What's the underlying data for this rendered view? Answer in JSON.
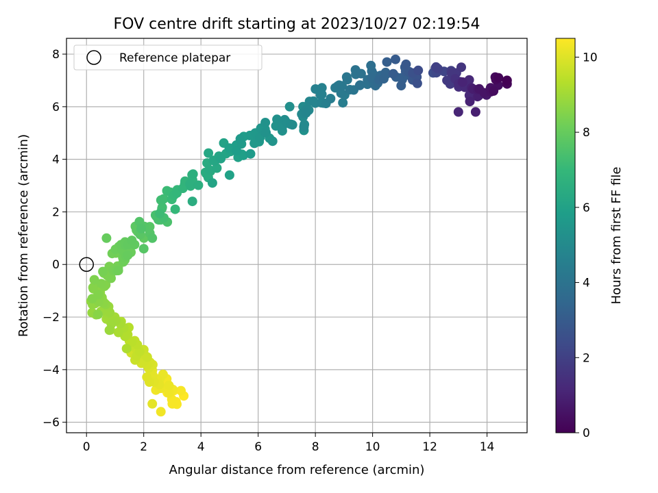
{
  "chart_data": {
    "type": "scatter",
    "title": "FOV centre drift starting at 2023/10/27 02:19:54",
    "xlabel": "Angular distance from reference (arcmin)",
    "ylabel": "Rotation from reference (arcmin)",
    "xlim": [
      -0.7,
      15.4
    ],
    "ylim": [
      -6.4,
      8.6
    ],
    "xticks": [
      0,
      2,
      4,
      6,
      8,
      10,
      12,
      14
    ],
    "yticks": [
      -6,
      -4,
      -2,
      0,
      2,
      4,
      6,
      8
    ],
    "grid": true,
    "legend": {
      "position": "top-left",
      "entries": [
        "Reference platepar"
      ]
    },
    "reference_point": {
      "x": 0,
      "y": 0,
      "label": "Reference platepar"
    },
    "colorbar": {
      "label": "Hours from first FF file",
      "colormap": "viridis",
      "range": [
        0,
        10.5
      ],
      "ticks": [
        0,
        2,
        4,
        6,
        8,
        10
      ]
    },
    "colormap_stops": [
      "#440154",
      "#482878",
      "#3e4a89",
      "#31688e",
      "#26828e",
      "#1f9e89",
      "#35b779",
      "#6ece58",
      "#b5de2b",
      "#fde725"
    ],
    "anchors": [
      {
        "x": 14.6,
        "y": 7.0,
        "t": 0.05
      },
      {
        "x": 13.5,
        "y": 6.5,
        "t": 0.9
      },
      {
        "x": 12.8,
        "y": 7.2,
        "t": 1.8
      },
      {
        "x": 11.2,
        "y": 7.2,
        "t": 2.9
      },
      {
        "x": 10.3,
        "y": 7.1,
        "t": 3.6
      },
      {
        "x": 9.3,
        "y": 7.0,
        "t": 4.1
      },
      {
        "x": 8.2,
        "y": 6.2,
        "t": 4.6
      },
      {
        "x": 7.5,
        "y": 5.6,
        "t": 5.0
      },
      {
        "x": 6.5,
        "y": 5.2,
        "t": 5.35
      },
      {
        "x": 5.5,
        "y": 4.6,
        "t": 5.75
      },
      {
        "x": 4.5,
        "y": 3.9,
        "t": 6.25
      },
      {
        "x": 3.5,
        "y": 3.1,
        "t": 6.8
      },
      {
        "x": 2.8,
        "y": 2.0,
        "t": 7.3
      },
      {
        "x": 2.0,
        "y": 1.3,
        "t": 7.75
      },
      {
        "x": 1.3,
        "y": 0.5,
        "t": 8.05
      },
      {
        "x": 0.9,
        "y": -0.2,
        "t": 8.3
      },
      {
        "x": 0.3,
        "y": -1.0,
        "t": 8.6
      },
      {
        "x": 0.4,
        "y": -1.6,
        "t": 8.8
      },
      {
        "x": 1.0,
        "y": -2.2,
        "t": 9.1
      },
      {
        "x": 1.6,
        "y": -3.0,
        "t": 9.5
      },
      {
        "x": 2.1,
        "y": -3.8,
        "t": 9.9
      },
      {
        "x": 2.6,
        "y": -4.5,
        "t": 10.2
      },
      {
        "x": 3.0,
        "y": -5.0,
        "t": 10.5
      }
    ],
    "extra_points": [
      {
        "x": 10.8,
        "y": 7.8,
        "t": 3.0
      },
      {
        "x": 10.5,
        "y": 7.7,
        "t": 3.1
      },
      {
        "x": 9.4,
        "y": 7.4,
        "t": 4.0
      },
      {
        "x": 11.3,
        "y": 7.3,
        "t": 2.9
      },
      {
        "x": 11.0,
        "y": 6.8,
        "t": 3.1
      },
      {
        "x": 10.1,
        "y": 6.8,
        "t": 3.7
      },
      {
        "x": 13.0,
        "y": 5.8,
        "t": 1.1
      },
      {
        "x": 13.6,
        "y": 5.8,
        "t": 0.9
      },
      {
        "x": 13.4,
        "y": 6.2,
        "t": 1.0
      },
      {
        "x": 14.4,
        "y": 7.1,
        "t": 0.1
      },
      {
        "x": 14.7,
        "y": 7.0,
        "t": 0.0
      },
      {
        "x": 12.6,
        "y": 7.0,
        "t": 1.8
      },
      {
        "x": 13.1,
        "y": 7.5,
        "t": 1.6
      },
      {
        "x": 7.1,
        "y": 6.0,
        "t": 5.2
      },
      {
        "x": 7.6,
        "y": 5.1,
        "t": 5.3
      },
      {
        "x": 6.4,
        "y": 4.8,
        "t": 5.5
      },
      {
        "x": 5.9,
        "y": 5.0,
        "t": 5.6
      },
      {
        "x": 5.0,
        "y": 3.4,
        "t": 6.0
      },
      {
        "x": 4.4,
        "y": 3.1,
        "t": 6.1
      },
      {
        "x": 3.7,
        "y": 2.4,
        "t": 6.5
      },
      {
        "x": 3.1,
        "y": 2.1,
        "t": 7.0
      },
      {
        "x": 2.6,
        "y": 1.7,
        "t": 7.4
      },
      {
        "x": 2.3,
        "y": 1.0,
        "t": 7.6
      },
      {
        "x": 2.0,
        "y": 0.6,
        "t": 7.7
      },
      {
        "x": 0.7,
        "y": 1.0,
        "t": 8.0
      },
      {
        "x": 0.2,
        "y": -1.3,
        "t": 8.5
      },
      {
        "x": 0.4,
        "y": -1.9,
        "t": 8.6
      },
      {
        "x": 0.8,
        "y": -2.5,
        "t": 8.9
      },
      {
        "x": 1.4,
        "y": -3.2,
        "t": 9.2
      },
      {
        "x": 2.3,
        "y": -5.3,
        "t": 10.1
      },
      {
        "x": 2.6,
        "y": -5.6,
        "t": 10.3
      },
      {
        "x": 3.0,
        "y": -5.3,
        "t": 10.4
      },
      {
        "x": 3.4,
        "y": -5.0,
        "t": 10.5
      },
      {
        "x": 3.3,
        "y": -4.8,
        "t": 10.4
      }
    ]
  }
}
